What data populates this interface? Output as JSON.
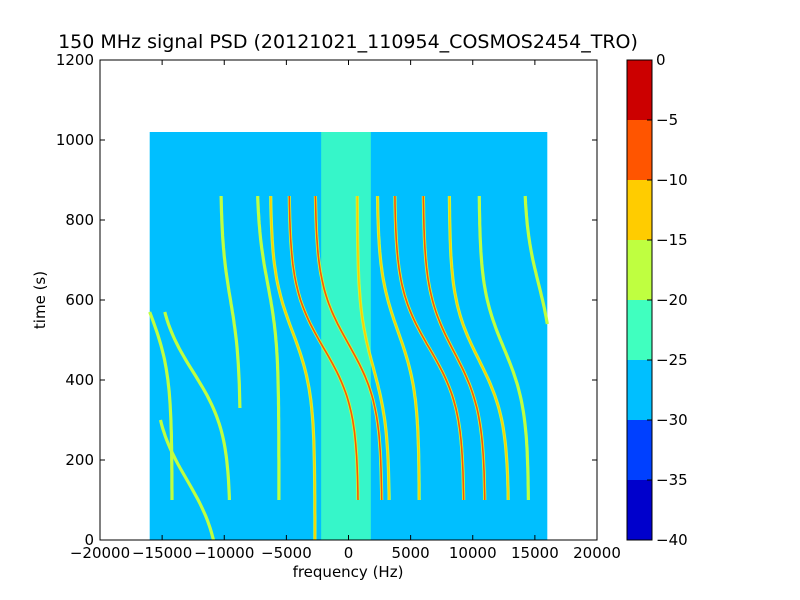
{
  "chart_data": {
    "type": "heatmap",
    "title": "150 MHz signal PSD (20121021_110954_COSMOS2454_TRO)",
    "xlabel": "frequency (Hz)",
    "ylabel": "time (s)",
    "xlim": [
      -20000,
      20000
    ],
    "ylim": [
      0,
      1200
    ],
    "xticks": [
      -20000,
      -15000,
      -10000,
      -5000,
      0,
      5000,
      10000,
      15000,
      20000
    ],
    "xtick_labels": [
      "−20000",
      "−15000",
      "−10000",
      "−5000",
      "0",
      "5000",
      "10000",
      "15000",
      "20000"
    ],
    "yticks": [
      0,
      200,
      400,
      600,
      800,
      1000,
      1200
    ],
    "ytick_labels": [
      "0",
      "200",
      "400",
      "600",
      "800",
      "1000",
      "1200"
    ],
    "data_extent": {
      "x": [
        -16000,
        16000
      ],
      "y": [
        0,
        1020
      ]
    },
    "background_level": -27.5,
    "central_band": {
      "x_center": -200,
      "half_width": 2000,
      "level": -22.5,
      "y_range": [
        0,
        1020
      ]
    },
    "grid": false,
    "colorbar": {
      "levels": [
        -40,
        -35,
        -30,
        -25,
        -20,
        -15,
        -10,
        -5,
        0
      ],
      "tick_labels": [
        "−40",
        "−35",
        "−30",
        "−25",
        "−20",
        "−15",
        "−10",
        "−5",
        "0"
      ],
      "colors": [
        "#0000cc",
        "#0040ff",
        "#00bfff",
        "#40ffbf",
        "#bfff40",
        "#ffcc00",
        "#ff5500",
        "#cc0000"
      ],
      "placement": "right"
    },
    "traces": [
      {
        "x_center": -16000,
        "y_center": 570,
        "spread": 1800,
        "y_range": [
          100,
          860
        ],
        "level": -17.5
      },
      {
        "x_center": -12500,
        "y_center": 420,
        "spread": 3000,
        "y_range": [
          100,
          570
        ],
        "level": -17.5
      },
      {
        "x_center": -13000,
        "y_center": 150,
        "spread": 2800,
        "y_range": [
          0,
          300
        ],
        "level": -17.5
      },
      {
        "x_center": -9500,
        "y_center": 600,
        "spread": 800,
        "y_range": [
          330,
          860
        ],
        "level": -17.5
      },
      {
        "x_center": -6500,
        "y_center": 640,
        "spread": 900,
        "y_range": [
          100,
          860
        ],
        "level": -17.5
      },
      {
        "x_center": -4500,
        "y_center": 520,
        "spread": 1800,
        "y_range": [
          0,
          860
        ],
        "level": -12.5
      },
      {
        "x_center": -2000,
        "y_center": 480,
        "spread": 2800,
        "y_range": [
          100,
          860
        ],
        "level": -7.5
      },
      {
        "x_center": 0,
        "y_center": 490,
        "spread": 2700,
        "y_range": [
          100,
          860
        ],
        "level": -7.5
      },
      {
        "x_center": 2000,
        "y_center": 430,
        "spread": 1300,
        "y_range": [
          100,
          860
        ],
        "level": -12.5
      },
      {
        "x_center": 4000,
        "y_center": 520,
        "spread": 1700,
        "y_range": [
          100,
          860
        ],
        "level": -12.5
      },
      {
        "x_center": 6500,
        "y_center": 480,
        "spread": 2800,
        "y_range": [
          100,
          860
        ],
        "level": -7.5
      },
      {
        "x_center": 8500,
        "y_center": 470,
        "spread": 2500,
        "y_range": [
          100,
          860
        ],
        "level": -7.5
      },
      {
        "x_center": 10500,
        "y_center": 450,
        "spread": 2400,
        "y_range": [
          100,
          860
        ],
        "level": -12.5
      },
      {
        "x_center": 12500,
        "y_center": 480,
        "spread": 2000,
        "y_range": [
          100,
          860
        ],
        "level": -17.5
      },
      {
        "x_center": 15300,
        "y_center": 640,
        "spread": 1200,
        "y_range": [
          100,
          860
        ],
        "level": -17.5
      }
    ]
  }
}
